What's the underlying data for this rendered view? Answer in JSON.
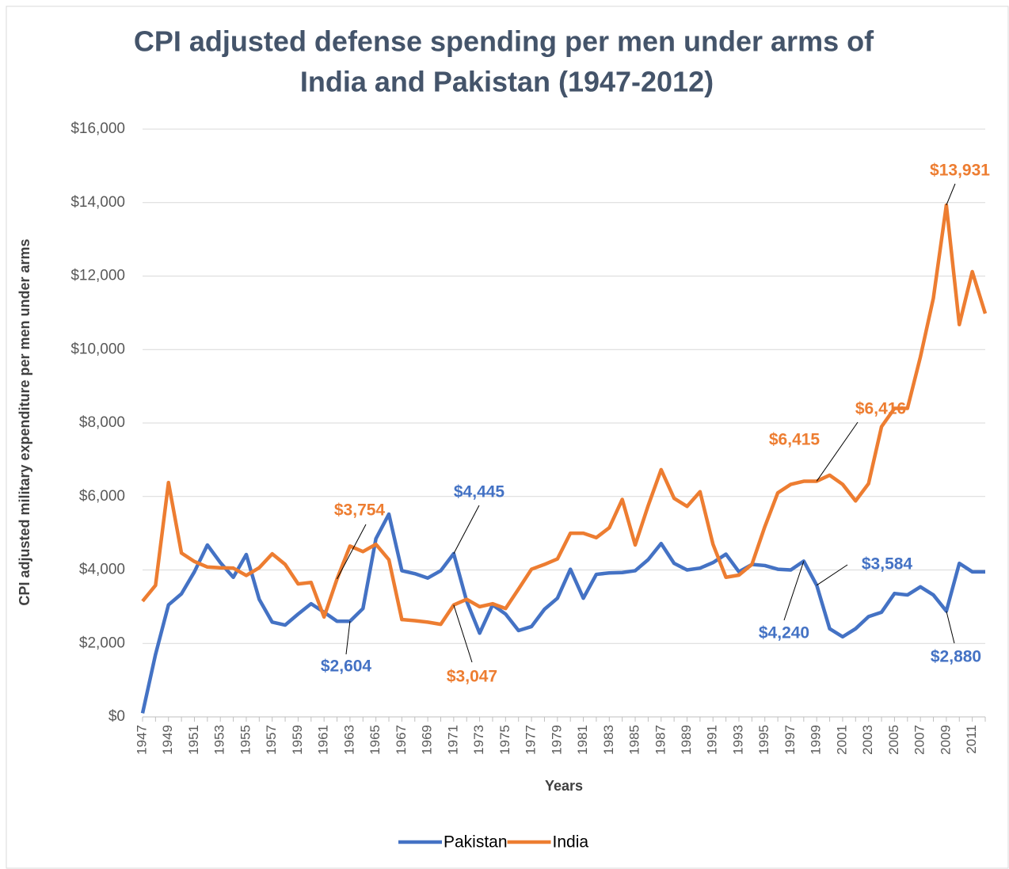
{
  "chart_data": {
    "type": "line",
    "title_lines": [
      "CPI adjusted defense spending per men under arms of",
      "India and Pakistan (1947-2012)"
    ],
    "x_label": "Years",
    "y_label": "CPI adjusted military expenditure per men under arms",
    "categories": [
      "1947",
      null,
      "1949",
      null,
      "1951",
      null,
      "1953",
      null,
      "1955",
      null,
      "1957",
      null,
      "1959",
      null,
      "1961",
      null,
      "1963",
      null,
      "1965",
      null,
      "1967",
      null,
      "1969",
      null,
      "1971",
      null,
      "1973",
      null,
      "1975",
      null,
      "1977",
      null,
      "1979",
      null,
      "1981",
      null,
      "1983",
      null,
      "1985",
      null,
      "1987",
      null,
      "1989",
      null,
      "1991",
      null,
      "1993",
      null,
      "1995",
      null,
      "1997",
      null,
      "1999",
      null,
      "2001",
      null,
      "2003",
      null,
      "2005",
      null,
      "2007",
      null,
      "2009",
      null,
      "2011",
      null
    ],
    "ylim": [
      0,
      16000
    ],
    "yticks": [
      {
        "value": 0,
        "label": "$0"
      },
      {
        "value": 2000,
        "label": "$2,000"
      },
      {
        "value": 4000,
        "label": "$4,000"
      },
      {
        "value": 6000,
        "label": "$6,000"
      },
      {
        "value": 8000,
        "label": "$8,000"
      },
      {
        "value": 10000,
        "label": "$10,000"
      },
      {
        "value": 12000,
        "label": "$12,000"
      },
      {
        "value": 14000,
        "label": "$14,000"
      },
      {
        "value": 16000,
        "label": "$16,000"
      }
    ],
    "grid": true,
    "legend": "bottom",
    "series": [
      {
        "name": "Pakistan",
        "color": "#4472c4",
        "values": [
          100,
          1700,
          3050,
          3350,
          3950,
          4680,
          4200,
          3800,
          4420,
          3200,
          2580,
          2500,
          2800,
          3080,
          2850,
          2604,
          2604,
          2950,
          4850,
          5520,
          3980,
          3900,
          3780,
          3980,
          4445,
          3150,
          2280,
          3050,
          2800,
          2350,
          2460,
          2930,
          3230,
          4020,
          3230,
          3880,
          3920,
          3930,
          3980,
          4280,
          4720,
          4180,
          4000,
          4050,
          4200,
          4430,
          3950,
          4150,
          4120,
          4020,
          4000,
          4240,
          3584,
          2400,
          2180,
          2400,
          2730,
          2850,
          3360,
          3320,
          3540,
          3320,
          2880,
          4180,
          3950,
          3950
        ],
        "value_labels": [
          null,
          null,
          null,
          null,
          null,
          null,
          null,
          null,
          null,
          null,
          null,
          null,
          null,
          null,
          null,
          null,
          "$2,604",
          null,
          null,
          null,
          null,
          null,
          null,
          null,
          "$4,445",
          null,
          null,
          null,
          null,
          null,
          null,
          null,
          null,
          null,
          null,
          null,
          null,
          null,
          null,
          null,
          null,
          null,
          null,
          null,
          null,
          null,
          null,
          null,
          null,
          null,
          null,
          "$4,240",
          "$3,584",
          null,
          null,
          null,
          null,
          null,
          null,
          null,
          null,
          null,
          "$2,880",
          null,
          null,
          null
        ]
      },
      {
        "name": "India",
        "color": "#ed7d31",
        "values": [
          3150,
          3580,
          6380,
          4460,
          4230,
          4080,
          4060,
          4050,
          3850,
          4060,
          4440,
          4150,
          3620,
          3660,
          2720,
          3754,
          4650,
          4500,
          4700,
          4280,
          2650,
          2620,
          2580,
          2520,
          3047,
          3200,
          3000,
          3080,
          2950,
          3480,
          4020,
          4150,
          4300,
          5000,
          5000,
          4880,
          5150,
          5920,
          4680,
          5750,
          6730,
          5950,
          5730,
          6130,
          4700,
          3800,
          3860,
          4150,
          5180,
          6100,
          6330,
          6415,
          6416,
          6580,
          6330,
          5880,
          6350,
          7900,
          8400,
          8400,
          9800,
          11400,
          13931,
          10680,
          12120,
          10980
        ],
        "value_labels": [
          null,
          null,
          null,
          null,
          null,
          null,
          null,
          null,
          null,
          null,
          null,
          null,
          null,
          null,
          null,
          "$3,754",
          null,
          null,
          null,
          null,
          null,
          null,
          null,
          null,
          "$3,047",
          null,
          null,
          null,
          null,
          null,
          null,
          null,
          null,
          null,
          null,
          null,
          null,
          null,
          null,
          null,
          null,
          null,
          null,
          null,
          null,
          null,
          null,
          null,
          null,
          null,
          null,
          "$6,415",
          "$6,416",
          null,
          null,
          null,
          null,
          null,
          null,
          null,
          null,
          null,
          "$13,931",
          null,
          null,
          null
        ]
      }
    ]
  }
}
